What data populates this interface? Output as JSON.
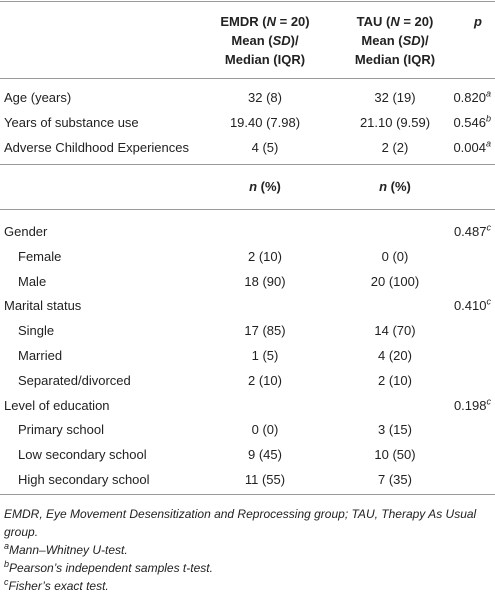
{
  "table": {
    "header": [
      {
        "lines": [
          [
            {
              "t": "EMDR ("
            },
            {
              "t": "N",
              "i": true
            },
            {
              "t": " = 20)"
            }
          ],
          [
            {
              "t": "Mean ("
            },
            {
              "t": "SD",
              "i": true
            },
            {
              "t": ")/"
            }
          ],
          [
            {
              "t": "Median (IQR)"
            }
          ]
        ]
      },
      {
        "lines": [
          [
            {
              "t": "TAU ("
            },
            {
              "t": "N",
              "i": true
            },
            {
              "t": " = 20)"
            }
          ],
          [
            {
              "t": "Mean ("
            },
            {
              "t": "SD",
              "i": true
            },
            {
              "t": ")/"
            }
          ],
          [
            {
              "t": "Median (IQR)"
            }
          ]
        ]
      },
      {
        "lines": [
          [
            {
              "t": "p",
              "i": true
            }
          ]
        ]
      }
    ],
    "rows1": [
      {
        "label": "Age (years)",
        "emdr": "32 (8)",
        "tau": "32 (19)",
        "p": {
          "value": "0.820",
          "note": "a"
        }
      },
      {
        "label": "Years of substance use",
        "emdr": "19.40 (7.98)",
        "tau": "21.10 (9.59)",
        "p": {
          "value": "0.546",
          "note": "b"
        }
      },
      {
        "label": "Adverse Childhood Experiences",
        "emdr": "4 (5)",
        "tau": "2 (2)",
        "p": {
          "value": "0.004",
          "note": "a"
        }
      }
    ],
    "subheader": [
      [
        {
          "t": "n",
          "i": true
        },
        {
          "t": " (%)"
        }
      ],
      [
        {
          "t": "n",
          "i": true
        },
        {
          "t": " (%)"
        }
      ]
    ],
    "rows2": [
      {
        "label": "Gender",
        "p": {
          "value": "0.487",
          "note": "c"
        }
      },
      {
        "label": "Female",
        "indent": true,
        "emdr": "2 (10)",
        "tau": "0 (0)"
      },
      {
        "label": "Male",
        "indent": true,
        "emdr": "18 (90)",
        "tau": "20 (100)"
      },
      {
        "label": "Marital status",
        "p": {
          "value": "0.410",
          "note": "c"
        }
      },
      {
        "label": "Single",
        "indent": true,
        "emdr": "17 (85)",
        "tau": "14 (70)"
      },
      {
        "label": "Married",
        "indent": true,
        "emdr": "1 (5)",
        "tau": "4 (20)"
      },
      {
        "label": "Separated/divorced",
        "indent": true,
        "emdr": "2 (10)",
        "tau": "2 (10)"
      },
      {
        "label": "Level of education",
        "p": {
          "value": "0.198",
          "note": "c"
        }
      },
      {
        "label": "Primary school",
        "indent": true,
        "emdr": "0 (0)",
        "tau": "3 (15)"
      },
      {
        "label": "Low secondary school",
        "indent": true,
        "emdr": "9 (45)",
        "tau": "10 (50)"
      },
      {
        "label": "High secondary school",
        "indent": true,
        "emdr": "11 (55)",
        "tau": "7 (35)"
      }
    ],
    "footnotes": [
      {
        "text": "EMDR, Eye Movement Desensitization and Reprocessing group; TAU, Therapy As Usual group."
      },
      {
        "note": "a",
        "text": "Mann–Whitney U-test."
      },
      {
        "note": "b",
        "text": "Pearson’s independent samples t-test."
      },
      {
        "note": "c",
        "text": "Fisher’s exact test."
      }
    ]
  }
}
